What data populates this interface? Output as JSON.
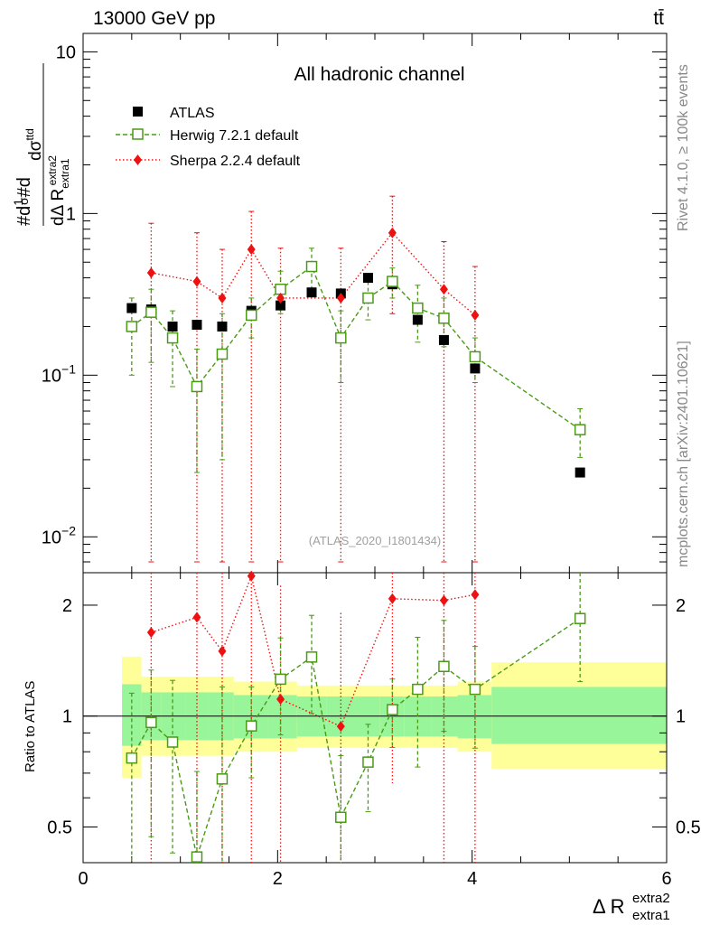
{
  "header": {
    "left": "13000 GeV pp",
    "right": "tt̄"
  },
  "side_labels": {
    "top": "Rivet 4.1.0, ≥ 100k events",
    "bottom": "mcplots.cern.ch [arXiv:2401.10621]"
  },
  "chart_data": {
    "type": "scatter",
    "title": "All hadronic channel",
    "watermark": "(ATLAS_2020_I1801434)",
    "xlabel": "Δ R",
    "xlabel_sup": "extra2",
    "xlabel_sub": "extra1",
    "ylabel_main": "#d1/σ#d dσ^ttd / dΔ R_extra1^extra2",
    "ylabel_ratio": "Ratio to ATLAS",
    "xlim": [
      0,
      6
    ],
    "ylim_main": [
      0.006,
      13
    ],
    "ylim_ratio": [
      0.4,
      2.45
    ],
    "x_ticks": [
      "0",
      "2",
      "4",
      "6"
    ],
    "y_main_ticks": [
      {
        "v": 10,
        "label": "10"
      },
      {
        "v": 1,
        "label": "1"
      },
      {
        "v": 0.1,
        "label": "10^-1"
      },
      {
        "v": 0.01,
        "label": "10^-2"
      }
    ],
    "y_ratio_ticks": [
      {
        "v": 2,
        "label": "2"
      },
      {
        "v": 1,
        "label": "1"
      },
      {
        "v": 0.5,
        "label": "0.5"
      }
    ],
    "legend": [
      {
        "label": "ATLAS",
        "marker": "square-filled",
        "color": "#000000"
      },
      {
        "label": "Herwig 7.2.1 default",
        "marker": "square-open",
        "color": "#4a9a16"
      },
      {
        "label": "Sherpa 2.2.4 default",
        "marker": "diamond",
        "color": "#ee1111"
      }
    ],
    "bins": [
      {
        "x": 0.5,
        "lo": 0.4,
        "hi": 0.6,
        "data": 0.26,
        "herwig": 0.2,
        "herwig_err": [
          0.1,
          0.3
        ],
        "sherpa": null,
        "sherpa_err": null,
        "band_in": [
          0.83,
          1.22
        ],
        "band_out": [
          0.68,
          1.45
        ]
      },
      {
        "x": 0.7,
        "lo": 0.6,
        "hi": 0.8,
        "data": 0.255,
        "herwig": 0.245,
        "herwig_err": [
          0.12,
          0.34
        ],
        "sherpa": 0.43,
        "sherpa_err": [
          0.007,
          0.87
        ],
        "band_in": [
          0.86,
          1.16
        ],
        "band_out": [
          0.78,
          1.28
        ]
      },
      {
        "x": 0.92,
        "lo": 0.8,
        "hi": 1.05,
        "data": 0.2,
        "herwig": 0.17,
        "herwig_err": [
          0.085,
          0.25
        ],
        "sherpa": null,
        "sherpa_err": null,
        "band_in": [
          0.86,
          1.16
        ],
        "band_out": [
          0.78,
          1.28
        ]
      },
      {
        "x": 1.17,
        "lo": 1.05,
        "hi": 1.3,
        "data": 0.205,
        "herwig": 0.085,
        "herwig_err": [
          0.025,
          0.145
        ],
        "sherpa": 0.38,
        "sherpa_err": [
          0.007,
          0.76
        ],
        "band_in": [
          0.86,
          1.16
        ],
        "band_out": [
          0.78,
          1.28
        ]
      },
      {
        "x": 1.43,
        "lo": 1.3,
        "hi": 1.55,
        "data": 0.2,
        "herwig": 0.135,
        "herwig_err": [
          0.03,
          0.24
        ],
        "sherpa": 0.3,
        "sherpa_err": [
          0.007,
          0.6
        ],
        "band_in": [
          0.86,
          1.16
        ],
        "band_out": [
          0.78,
          1.28
        ]
      },
      {
        "x": 1.73,
        "lo": 1.55,
        "hi": 1.9,
        "data": 0.25,
        "herwig": 0.235,
        "herwig_err": [
          0.17,
          0.3
        ],
        "sherpa": 0.6,
        "sherpa_err": [
          0.007,
          1.03
        ],
        "band_in": [
          0.87,
          1.14
        ],
        "band_out": [
          0.8,
          1.24
        ]
      },
      {
        "x": 2.03,
        "lo": 1.9,
        "hi": 2.2,
        "data": 0.27,
        "herwig": 0.34,
        "herwig_err": [
          0.24,
          0.44
        ],
        "sherpa": 0.3,
        "sherpa_err": [
          0.007,
          0.61
        ],
        "band_in": [
          0.87,
          1.14
        ],
        "band_out": [
          0.8,
          1.24
        ]
      },
      {
        "x": 2.35,
        "lo": 2.2,
        "hi": 2.5,
        "data": 0.325,
        "herwig": 0.47,
        "herwig_err": [
          0.33,
          0.61
        ],
        "sherpa": null,
        "sherpa_err": null,
        "band_in": [
          0.88,
          1.13
        ],
        "band_out": [
          0.82,
          1.21
        ]
      },
      {
        "x": 2.65,
        "lo": 2.5,
        "hi": 2.8,
        "data": 0.32,
        "herwig": 0.17,
        "herwig_err": [
          0.09,
          0.25
        ],
        "sherpa": 0.3,
        "sherpa_err": [
          0.007,
          0.61
        ],
        "band_in": [
          0.88,
          1.13
        ],
        "band_out": [
          0.82,
          1.21
        ]
      },
      {
        "x": 2.93,
        "lo": 2.8,
        "hi": 3.05,
        "data": 0.4,
        "herwig": 0.3,
        "herwig_err": [
          0.22,
          0.38
        ],
        "sherpa": null,
        "sherpa_err": null,
        "band_in": [
          0.88,
          1.13
        ],
        "band_out": [
          0.82,
          1.21
        ]
      },
      {
        "x": 3.18,
        "lo": 3.05,
        "hi": 3.3,
        "data": 0.365,
        "herwig": 0.38,
        "herwig_err": [
          0.3,
          0.46
        ],
        "sherpa": 0.76,
        "sherpa_err": [
          0.24,
          1.28
        ],
        "band_in": [
          0.88,
          1.13
        ],
        "band_out": [
          0.82,
          1.21
        ]
      },
      {
        "x": 3.44,
        "lo": 3.3,
        "hi": 3.58,
        "data": 0.22,
        "herwig": 0.26,
        "herwig_err": [
          0.16,
          0.36
        ],
        "sherpa": null,
        "sherpa_err": null,
        "band_in": [
          0.88,
          1.13
        ],
        "band_out": [
          0.82,
          1.21
        ]
      },
      {
        "x": 3.71,
        "lo": 3.58,
        "hi": 3.85,
        "data": 0.165,
        "herwig": 0.225,
        "herwig_err": [
          0.15,
          0.3
        ],
        "sherpa": 0.34,
        "sherpa_err": [
          0.007,
          0.67
        ],
        "band_in": [
          0.88,
          1.13
        ],
        "band_out": [
          0.82,
          1.21
        ]
      },
      {
        "x": 4.03,
        "lo": 3.85,
        "hi": 4.2,
        "data": 0.11,
        "herwig": 0.13,
        "herwig_err": [
          0.09,
          0.17
        ],
        "sherpa": 0.235,
        "sherpa_err": [
          0.007,
          0.47
        ],
        "band_in": [
          0.87,
          1.14
        ],
        "band_out": [
          0.8,
          1.24
        ]
      },
      {
        "x": 5.11,
        "lo": 4.2,
        "hi": 6.0,
        "data": 0.025,
        "herwig": 0.046,
        "herwig_err": [
          0.031,
          0.062
        ],
        "sherpa": null,
        "sherpa_err": null,
        "band_in": [
          0.84,
          1.2
        ],
        "band_out": [
          0.72,
          1.4
        ]
      }
    ]
  }
}
